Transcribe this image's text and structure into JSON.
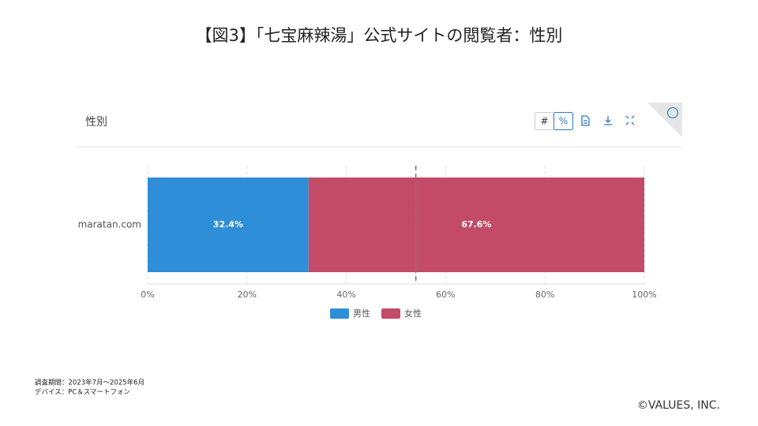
{
  "header": {
    "title": "【図3】「七宝麻辣湯」公式サイトの閲覧者：性別"
  },
  "panel": {
    "title": "性別",
    "toolbar": [
      "#",
      "%"
    ]
  },
  "chart_data": {
    "type": "stacked_bar_horizontal",
    "categories": [
      "maratan.com"
    ],
    "series": [
      {
        "name": "男性",
        "color": "#2e8fd8",
        "values": [
          32.4
        ],
        "value_labels": [
          "32.4%"
        ]
      },
      {
        "name": "女性",
        "color": "#c44b68",
        "values": [
          67.6
        ],
        "value_labels": [
          "67.6%"
        ]
      }
    ],
    "xlim": [
      0,
      100
    ],
    "xticks": [
      {
        "value": 0,
        "label": "0%"
      },
      {
        "value": 20,
        "label": "20%"
      },
      {
        "value": 40,
        "label": "40%"
      },
      {
        "value": 60,
        "label": "60%"
      },
      {
        "value": 80,
        "label": "80%"
      },
      {
        "value": 100,
        "label": "100%"
      }
    ],
    "reference_line": 54,
    "grid": true
  },
  "notes": [
    "調査期間：2023年7月～2025年6月",
    "デバイス：PC＆スマートフォン"
  ],
  "copyright": "©VALUES, INC."
}
